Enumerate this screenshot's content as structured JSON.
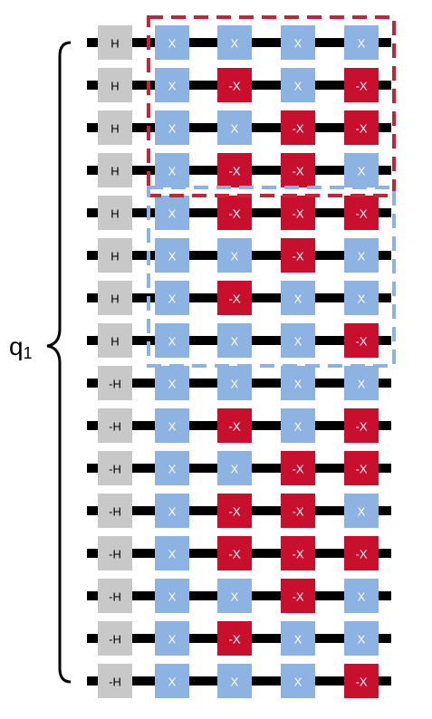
{
  "register": {
    "base": "q",
    "subscript": "1"
  },
  "first_column": [
    "H",
    "H",
    "H",
    "H",
    "H",
    "H",
    "H",
    "H",
    "-H",
    "-H",
    "-H",
    "-H",
    "-H",
    "-H",
    "-H",
    "-H"
  ],
  "x_columns": [
    [
      "X",
      "X",
      "X",
      "X",
      "X",
      "X",
      "X",
      "X",
      "X",
      "X",
      "X",
      "X",
      "X",
      "X",
      "X",
      "X"
    ],
    [
      "X",
      "-X",
      "X",
      "-X",
      "-X",
      "X",
      "-X",
      "X",
      "X",
      "-X",
      "X",
      "-X",
      "-X",
      "X",
      "-X",
      "X"
    ],
    [
      "X",
      "X",
      "-X",
      "-X",
      "-X",
      "-X",
      "X",
      "X",
      "X",
      "X",
      "-X",
      "-X",
      "-X",
      "-X",
      "X",
      "X"
    ],
    [
      "X",
      "-X",
      "-X",
      "X",
      "-X",
      "X",
      "X",
      "-X",
      "X",
      "-X",
      "-X",
      "X",
      "-X",
      "X",
      "X",
      "-X"
    ]
  ],
  "groups": [
    {
      "name": "red-group",
      "color": "#c8223a",
      "first_row": 0,
      "last_row": 3
    },
    {
      "name": "blue-group",
      "color": "#8db3e2",
      "first_row": 4,
      "last_row": 7
    }
  ],
  "colors": {
    "h_gate": "#c8c8c8",
    "x_gate": "#8db3e2",
    "neg_x_gate": "#c8102e",
    "wire": "#000000",
    "gate_text_light": "#ffffff",
    "gate_text_dark": "#000000"
  }
}
